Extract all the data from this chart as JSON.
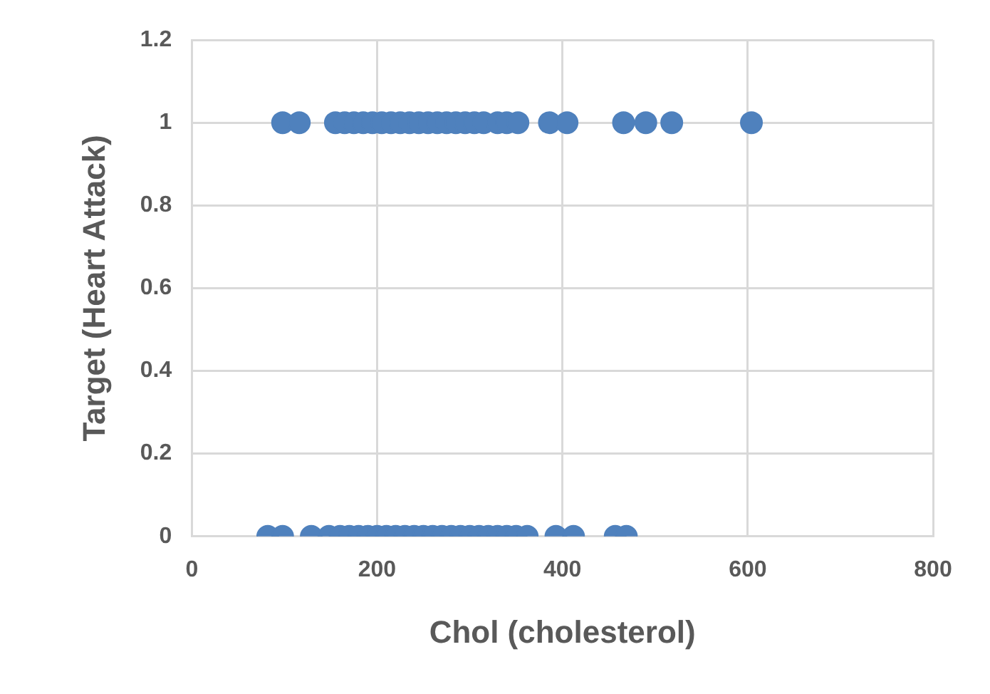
{
  "chart_data": {
    "type": "scatter",
    "xlabel": "Chol (cholesterol)",
    "ylabel": "Target (Heart Attack)",
    "xlim": [
      0,
      800
    ],
    "xticks": [
      0,
      200,
      400,
      600,
      800
    ],
    "ylim": [
      0,
      1.2
    ],
    "yticks": [
      0,
      0.2,
      0.4,
      0.6,
      0.8,
      1,
      1.2
    ],
    "grid": true,
    "legend": false,
    "marker": "circle",
    "series": [
      {
        "color": "#4f81bd",
        "x": [
          98,
          116,
          155,
          165,
          175,
          185,
          195,
          205,
          215,
          225,
          235,
          245,
          255,
          265,
          275,
          285,
          295,
          305,
          315,
          330,
          340,
          352,
          386,
          405,
          466,
          490,
          518,
          604
        ],
        "values": [
          1,
          1,
          1,
          1,
          1,
          1,
          1,
          1,
          1,
          1,
          1,
          1,
          1,
          1,
          1,
          1,
          1,
          1,
          1,
          1,
          1,
          1,
          1,
          1,
          1,
          1,
          1,
          1
        ]
      },
      {
        "color": "#4f81bd",
        "x": [
          82,
          98,
          129,
          148,
          160,
          170,
          180,
          190,
          200,
          210,
          220,
          230,
          240,
          250,
          260,
          270,
          280,
          290,
          300,
          310,
          320,
          330,
          340,
          350,
          362,
          393,
          412,
          457,
          469
        ],
        "values": [
          0,
          0,
          0,
          0,
          0,
          0,
          0,
          0,
          0,
          0,
          0,
          0,
          0,
          0,
          0,
          0,
          0,
          0,
          0,
          0,
          0,
          0,
          0,
          0,
          0,
          0,
          0,
          0,
          0
        ]
      }
    ]
  }
}
